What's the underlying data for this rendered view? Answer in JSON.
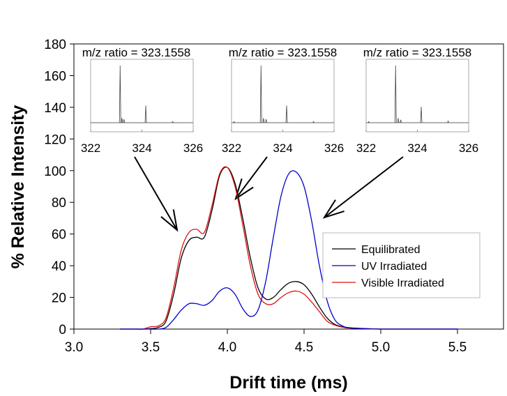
{
  "chart_data": {
    "type": "line",
    "xlabel": "Drift time (ms)",
    "ylabel": "% Relative Intensity",
    "xlim": [
      3.0,
      5.8
    ],
    "ylim": [
      0,
      180
    ],
    "xticks": [
      "3.0",
      "3.5",
      "4.0",
      "4.5",
      "5.0",
      "5.5"
    ],
    "yticks": [
      "0",
      "20",
      "40",
      "60",
      "80",
      "100",
      "120",
      "140",
      "160",
      "180"
    ],
    "grid": false,
    "legend_position": "right-middle",
    "x": [
      3.3,
      3.35,
      3.4,
      3.45,
      3.5,
      3.55,
      3.6,
      3.65,
      3.7,
      3.75,
      3.8,
      3.85,
      3.9,
      3.95,
      4.0,
      4.05,
      4.1,
      4.15,
      4.2,
      4.25,
      4.3,
      4.35,
      4.4,
      4.45,
      4.5,
      4.55,
      4.6,
      4.65,
      4.7,
      4.75,
      4.8,
      4.9,
      5.0,
      5.2,
      5.5
    ],
    "series": [
      {
        "name": "Equilibrated",
        "color": "#000000",
        "values": [
          0,
          0,
          0,
          0,
          0.3,
          1,
          5,
          22,
          45,
          56,
          58,
          58,
          75,
          97,
          102,
          92,
          70,
          45,
          26,
          19,
          20,
          25,
          29,
          30,
          28,
          22,
          14,
          7,
          3,
          1.5,
          0.8,
          0.3,
          0,
          0,
          0
        ]
      },
      {
        "name": "UV Irradiated",
        "color": "#0000cc",
        "values": [
          0,
          0,
          0,
          0,
          0,
          0,
          1,
          6,
          12,
          16,
          16,
          15,
          18,
          24,
          26,
          22,
          13,
          8,
          12,
          30,
          58,
          84,
          98,
          99,
          90,
          68,
          40,
          18,
          6,
          2,
          0.7,
          0.2,
          0,
          0,
          0
        ]
      },
      {
        "name": "Visible Irradiated",
        "color": "#e01010",
        "values": [
          0,
          0,
          0,
          0,
          1.5,
          2,
          7,
          26,
          50,
          61,
          63,
          61,
          78,
          98,
          102,
          90,
          66,
          40,
          22,
          16,
          16,
          20,
          23,
          24,
          22,
          17,
          11,
          5,
          2.5,
          1.2,
          0.6,
          0.3,
          0,
          0,
          0
        ]
      }
    ],
    "insets": [
      {
        "title": "m/z ratio = 323.1558",
        "xticks": [
          "322",
          "324",
          "326"
        ],
        "xlim": [
          322,
          326
        ],
        "peaks": [
          [
            323.15,
            100
          ],
          [
            323.22,
            8
          ],
          [
            323.3,
            6
          ],
          [
            324.15,
            30
          ],
          [
            325.2,
            2
          ]
        ],
        "arrow_target_drift": 3.73
      },
      {
        "title": "m/z ratio = 323.1558",
        "xticks": [
          "322",
          "324",
          "326"
        ],
        "xlim": [
          322,
          326
        ],
        "peaks": [
          [
            322.1,
            2
          ],
          [
            323.15,
            100
          ],
          [
            323.25,
            8
          ],
          [
            323.35,
            6
          ],
          [
            324.15,
            30
          ],
          [
            325.2,
            2
          ]
        ],
        "arrow_target_drift": 4.1
      },
      {
        "title": "m/z ratio = 323.1558",
        "xticks": [
          "322",
          "324",
          "326"
        ],
        "xlim": [
          322,
          326
        ],
        "peaks": [
          [
            322.1,
            2
          ],
          [
            323.15,
            100
          ],
          [
            323.25,
            8
          ],
          [
            323.35,
            5
          ],
          [
            324.15,
            28
          ],
          [
            325.2,
            3
          ]
        ],
        "arrow_target_drift": 4.7
      }
    ]
  }
}
